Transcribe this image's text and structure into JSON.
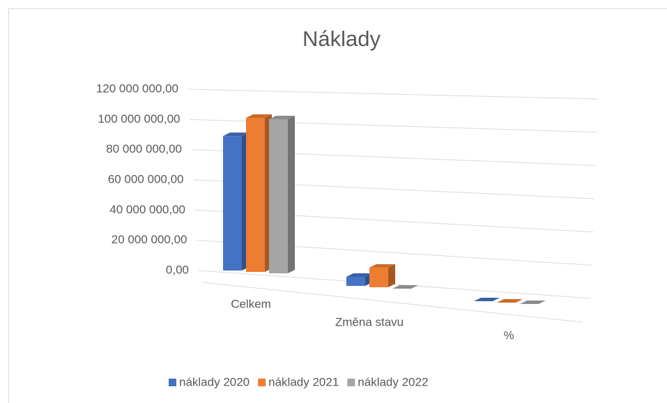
{
  "chart_data": {
    "type": "bar3d",
    "title": "Náklady",
    "categories": [
      "Celkem",
      "Změna stavu",
      "%"
    ],
    "series": [
      {
        "name": "náklady 2020",
        "color": "#4472c4",
        "values": [
          89000000,
          6000000,
          0
        ]
      },
      {
        "name": "náklady 2021",
        "color": "#ed7d31",
        "values": [
          102000000,
          13000000,
          0
        ]
      },
      {
        "name": "náklady 2022",
        "color": "#a5a5a5",
        "values": [
          102000000,
          0,
          0
        ]
      }
    ],
    "ylim": [
      0,
      120000000
    ],
    "yticks": [
      {
        "value": 0,
        "label": "0,00"
      },
      {
        "value": 20000000,
        "label": "20 000 000,00"
      },
      {
        "value": 40000000,
        "label": "40 000 000,00"
      },
      {
        "value": 60000000,
        "label": "60 000 000,00"
      },
      {
        "value": 80000000,
        "label": "80 000 000,00"
      },
      {
        "value": 100000000,
        "label": "100 000 000,00"
      },
      {
        "value": 120000000,
        "label": "120 000 000,00"
      }
    ],
    "grid": true,
    "legend": "bottom"
  }
}
